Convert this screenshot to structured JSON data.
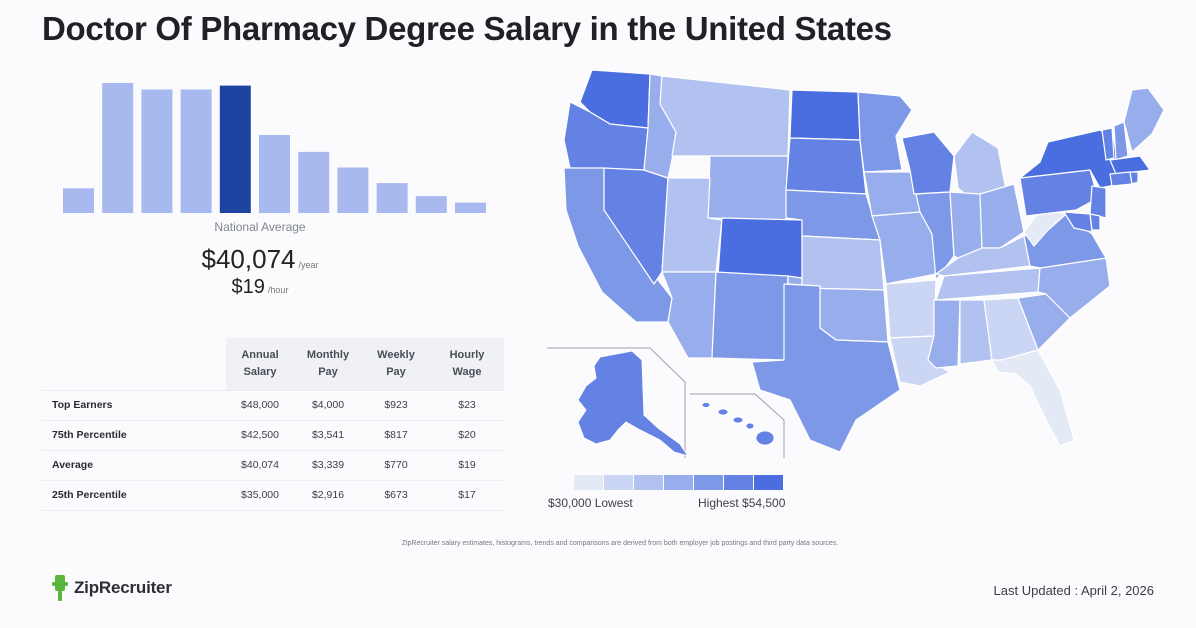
{
  "title": "Doctor Of Pharmacy Degree Salary in the United States",
  "national_average": {
    "label": "National Average",
    "annual": "$40,074",
    "annual_unit": "/year",
    "hourly": "$19",
    "hourly_unit": "/hour"
  },
  "chart_data": {
    "type": "bar",
    "values": [
      0.19,
      1.0,
      0.95,
      0.95,
      0.98,
      0.6,
      0.47,
      0.35,
      0.23,
      0.13,
      0.08
    ],
    "highlight_index": 4,
    "colors": {
      "bar": "#a7b9ee",
      "highlight": "#1e43a3"
    }
  },
  "table": {
    "headers": [
      "Annual\nSalary",
      "Monthly\nPay",
      "Weekly\nPay",
      "Hourly\nWage"
    ],
    "rows": [
      {
        "label": "Top Earners",
        "values": [
          "$48,000",
          "$4,000",
          "$923",
          "$23"
        ]
      },
      {
        "label": "75th Percentile",
        "values": [
          "$42,500",
          "$3,541",
          "$817",
          "$20"
        ]
      },
      {
        "label": "Average",
        "values": [
          "$40,074",
          "$3,339",
          "$770",
          "$19"
        ]
      },
      {
        "label": "25th Percentile",
        "values": [
          "$35,000",
          "$2,916",
          "$673",
          "$17"
        ]
      }
    ]
  },
  "map": {
    "legend_low": "$30,000 Lowest",
    "legend_high": "Highest $54,500",
    "legend_colors": [
      "#e4e9f6",
      "#cbd5f4",
      "#b2c2f0",
      "#98aeec",
      "#7e98e8",
      "#6482e3",
      "#4a6ddf"
    ],
    "state_level_colors": [
      "#e4e9f6",
      "#cbd5f4",
      "#b2c2f0",
      "#98aeec",
      "#7e98e8",
      "#6482e3",
      "#4a6ddf"
    ],
    "border_color": "#ffffff",
    "inset_color": "#9ea2ad"
  },
  "footnote": "ZipRecruiter salary estimates, histograms, trends and comparisons are derived from both employer job postings and third party data sources.",
  "logo": {
    "text": "ZipRecruiter",
    "color": "#58b63e"
  },
  "last_updated": "Last Updated : April 2, 2026"
}
